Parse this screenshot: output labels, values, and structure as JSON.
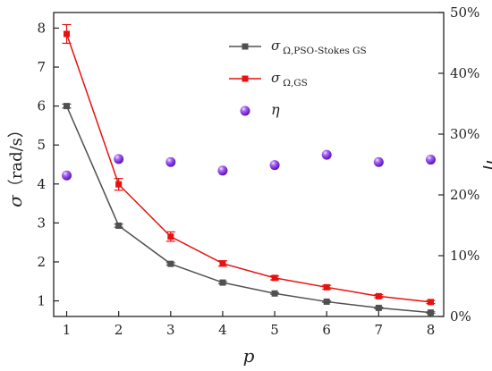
{
  "chart_data": {
    "type": "line",
    "x": [
      1,
      2,
      3,
      4,
      5,
      6,
      7,
      8
    ],
    "xlim": [
      0.75,
      8.25
    ],
    "x_ticks": [
      1,
      2,
      3,
      4,
      5,
      6,
      7,
      8
    ],
    "xlabel": "p",
    "ylabel_left_symbol": "σ",
    "ylabel_left_unit": "（rad/s）",
    "ylim_left": [
      0.6,
      8.4
    ],
    "y_ticks_left": [
      1,
      2,
      3,
      4,
      5,
      6,
      7,
      8
    ],
    "ylabel_right": "η",
    "ylim_right": [
      0,
      50
    ],
    "y_ticks_right": [
      0,
      10,
      20,
      30,
      40,
      50
    ],
    "y_tick_suffix_right": "%",
    "legend_position": "top-right",
    "grid": false,
    "series": [
      {
        "symbol": "σ",
        "subscript": "Ω,PSO-Stokes GS",
        "axis": "left",
        "kind": "line",
        "marker": "square",
        "color": "#505050",
        "values": [
          6.0,
          2.93,
          1.95,
          1.47,
          1.19,
          0.98,
          0.82,
          0.7
        ],
        "errors": [
          0.05,
          0.04,
          0.03,
          0.03,
          0.02,
          0.02,
          0.02,
          0.02
        ]
      },
      {
        "symbol": "σ",
        "subscript": "Ω,GS",
        "axis": "left",
        "kind": "line",
        "marker": "square",
        "color": "#e8110f",
        "values": [
          7.85,
          3.99,
          2.65,
          1.96,
          1.59,
          1.35,
          1.12,
          0.97
        ],
        "errors": [
          0.24,
          0.15,
          0.12,
          0.07,
          0.05,
          0.05,
          0.04,
          0.04
        ]
      },
      {
        "symbol": "η",
        "subscript": "",
        "axis": "right",
        "kind": "scatter",
        "marker": "sphere",
        "color": "#8a2be2",
        "values": [
          23.2,
          25.9,
          25.4,
          24.0,
          24.9,
          26.6,
          25.4,
          25.8
        ],
        "errors": []
      }
    ]
  }
}
